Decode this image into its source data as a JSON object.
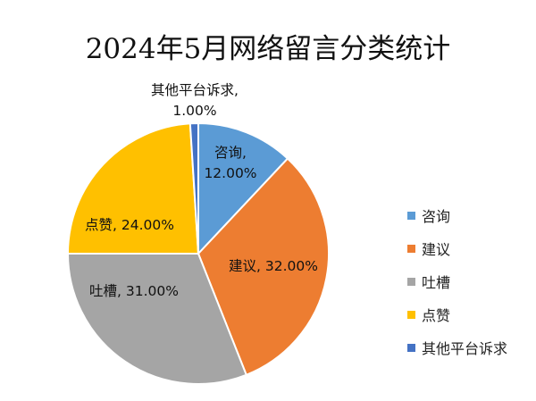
{
  "chart_data": {
    "type": "pie",
    "title": "2024年5月网络留言分类统计",
    "legend_position": "right",
    "slices": [
      {
        "name": "咨询",
        "value": 12.0,
        "label_lines": [
          "咨询,",
          "12.00%"
        ],
        "color": "#5B9BD5"
      },
      {
        "name": "建议",
        "value": 32.0,
        "label_lines": [
          "建议, 32.00%"
        ],
        "color": "#ED7D31"
      },
      {
        "name": "吐槽",
        "value": 31.0,
        "label_lines": [
          "吐槽, 31.00%"
        ],
        "color": "#A5A5A5"
      },
      {
        "name": "点赞",
        "value": 24.0,
        "label_lines": [
          "点赞, 24.00%"
        ],
        "color": "#FFC000"
      },
      {
        "name": "其他平台诉求",
        "value": 1.0,
        "label_lines": [
          "其他平台诉求,",
          "1.00%"
        ],
        "color": "#4472C4"
      }
    ]
  }
}
